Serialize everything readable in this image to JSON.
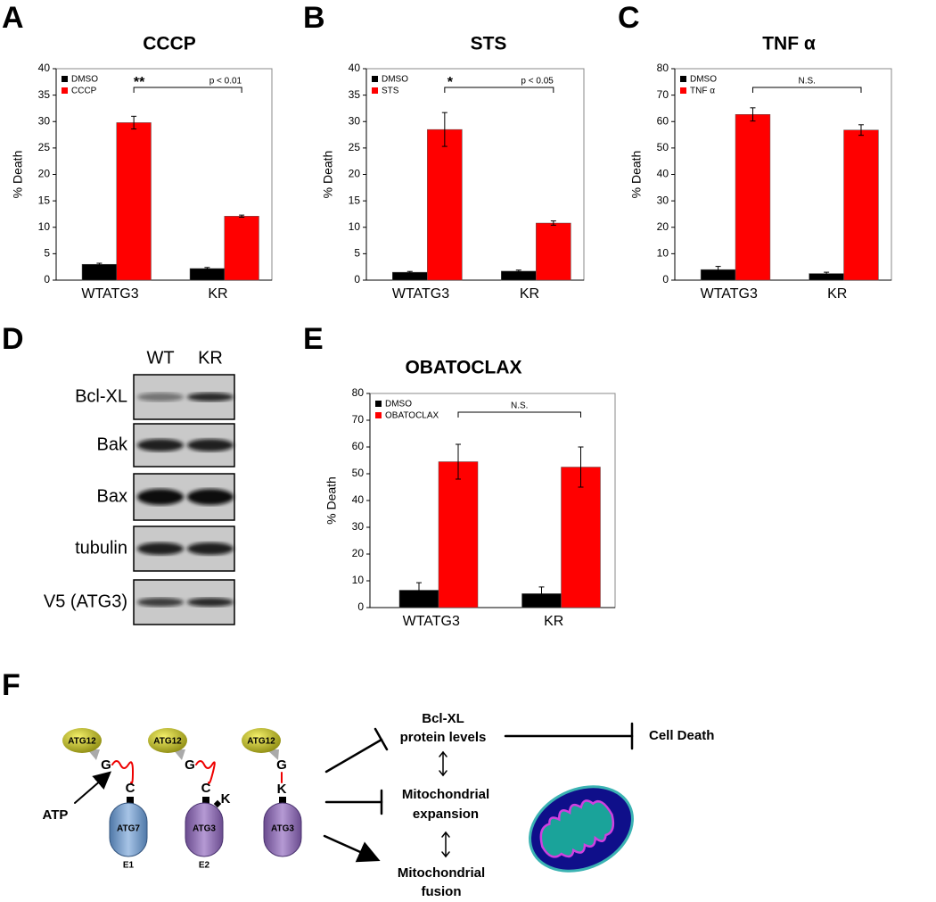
{
  "chart_data": [
    {
      "type": "bar",
      "panel": "A",
      "title": "CCCP",
      "ylabel": "% Death",
      "categories": [
        "WTATG3",
        "KR"
      ],
      "series": [
        {
          "name": "DMSO",
          "color": "#000000",
          "values": [
            3.0,
            2.2
          ],
          "errors": [
            0.2,
            0.2
          ]
        },
        {
          "name": "CCCP",
          "color": "#ff0000",
          "values": [
            29.8,
            12.1
          ],
          "errors": [
            1.2,
            0.2
          ]
        }
      ],
      "ylim": [
        0,
        40
      ],
      "yticks": [
        0,
        5,
        10,
        15,
        20,
        25,
        30,
        35,
        40
      ],
      "significance": {
        "mark": "**",
        "label": "p < 0.01"
      }
    },
    {
      "type": "bar",
      "panel": "B",
      "title": "STS",
      "ylabel": "% Death",
      "categories": [
        "WTATG3",
        "KR"
      ],
      "series": [
        {
          "name": "DMSO",
          "color": "#000000",
          "values": [
            1.5,
            1.7
          ],
          "errors": [
            0.15,
            0.2
          ]
        },
        {
          "name": "STS",
          "color": "#ff0000",
          "values": [
            28.5,
            10.8
          ],
          "errors": [
            3.2,
            0.4
          ]
        }
      ],
      "ylim": [
        0,
        40
      ],
      "yticks": [
        0,
        5,
        10,
        15,
        20,
        25,
        30,
        35,
        40
      ],
      "significance": {
        "mark": "*",
        "label": "p < 0.05"
      }
    },
    {
      "type": "bar",
      "panel": "C",
      "title": "TNF α",
      "ylabel": "% Death",
      "categories": [
        "WTATG3",
        "KR"
      ],
      "series": [
        {
          "name": "DMSO",
          "color": "#000000",
          "values": [
            4.0,
            2.5
          ],
          "errors": [
            1.2,
            0.5
          ]
        },
        {
          "name": "TNF α",
          "color": "#ff0000",
          "values": [
            62.7,
            56.8
          ],
          "errors": [
            2.5,
            2.0
          ]
        }
      ],
      "ylim": [
        0,
        80
      ],
      "yticks": [
        0,
        10,
        20,
        30,
        40,
        50,
        60,
        70,
        80
      ],
      "significance": {
        "label": "N.S."
      }
    },
    {
      "type": "bar",
      "panel": "E",
      "title": "OBATOCLAX",
      "ylabel": "% Death",
      "categories": [
        "WTATG3",
        "KR"
      ],
      "series": [
        {
          "name": "DMSO",
          "color": "#000000",
          "values": [
            6.5,
            5.2
          ],
          "errors": [
            2.8,
            2.5
          ]
        },
        {
          "name": "OBATOCLAX",
          "color": "#ff0000",
          "values": [
            54.5,
            52.5
          ],
          "errors": [
            6.5,
            7.5
          ]
        }
      ],
      "ylim": [
        0,
        80
      ],
      "yticks": [
        0,
        10,
        20,
        30,
        40,
        50,
        60,
        70,
        80
      ],
      "significance": {
        "label": "N.S."
      }
    }
  ],
  "blot": {
    "panel": "D",
    "lanes": [
      "WT",
      "KR"
    ],
    "rows": [
      "Bcl-XL",
      "Bak",
      "Bax",
      "tubulin",
      "V5 (ATG3)"
    ]
  },
  "diagram": {
    "panel": "F",
    "ubl": [
      "ATG12",
      "ATG12",
      "ATG12"
    ],
    "enzymes": [
      "ATG7",
      "ATG3",
      "ATG3"
    ],
    "stages": [
      "E1",
      "E2"
    ],
    "atp": "ATP",
    "residues": [
      "G",
      "C",
      "G",
      "C",
      "K",
      "G",
      "K"
    ],
    "outcomes": [
      [
        "Bcl-XL",
        "protein levels"
      ],
      [
        "Mitochondrial",
        "expansion"
      ],
      [
        "Mitochondrial",
        "fusion"
      ]
    ],
    "result": "Cell Death"
  }
}
